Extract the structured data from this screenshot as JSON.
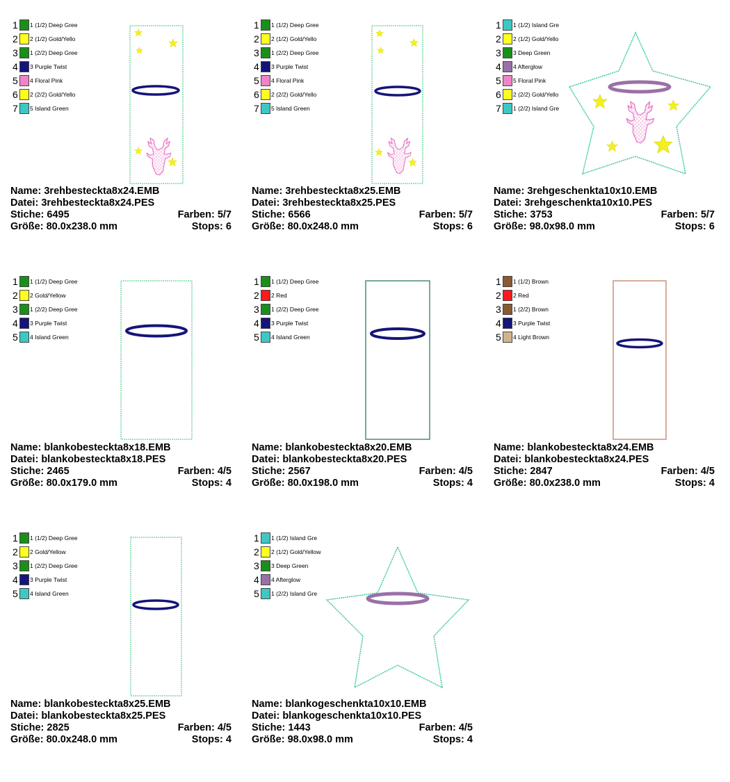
{
  "colors": {
    "deep_green": "#1a8f1a",
    "gold_yellow": "#ffff22",
    "purple_twist": "#14147a",
    "floral_pink": "#f084c8",
    "island_green": "#3ec8c4",
    "afterglow": "#9a70a8",
    "red": "#ff1a1a",
    "brown": "#8a5a32",
    "light_brown": "#d2b48c",
    "outline_green": "#7fd8a8",
    "outline_teal": "#4f8a7a",
    "outline_brown": "#c89078"
  },
  "labels": {
    "name": "Name:",
    "file": "Datei:",
    "stitches": "Stiche:",
    "colors": "Farben:",
    "size": "Größe:",
    "stops": "Stops:"
  },
  "designs": [
    {
      "shape": "rect-deer",
      "name": "3rehbesteckta8x24.EMB",
      "file": "3rehbesteckta8x24.PES",
      "stitches": "6495",
      "colors": "5/7",
      "size": "80.0x238.0 mm",
      "stops": "6",
      "legend": [
        {
          "num": "1",
          "label": "1 (1/2) Deep Gree",
          "color": "#1a8f1a"
        },
        {
          "num": "2",
          "label": "2 (1/2) Gold/Yello",
          "color": "#ffff22"
        },
        {
          "num": "3",
          "label": "1 (2/2) Deep Gree",
          "color": "#1a8f1a"
        },
        {
          "num": "4",
          "label": "3 Purple Twist",
          "color": "#14147a"
        },
        {
          "num": "5",
          "label": "4 Floral Pink",
          "color": "#f084c8"
        },
        {
          "num": "6",
          "label": "2 (2/2) Gold/Yello",
          "color": "#ffff22"
        },
        {
          "num": "7",
          "label": "5 Island Green",
          "color": "#3ec8c4"
        }
      ]
    },
    {
      "shape": "rect-deer",
      "name": "3rehbesteckta8x25.EMB",
      "file": "3rehbesteckta8x25.PES",
      "stitches": "6566",
      "colors": "5/7",
      "size": "80.0x248.0 mm",
      "stops": "6",
      "legend": [
        {
          "num": "1",
          "label": "1 (1/2) Deep Gree",
          "color": "#1a8f1a"
        },
        {
          "num": "2",
          "label": "2 (1/2) Gold/Yello",
          "color": "#ffff22"
        },
        {
          "num": "3",
          "label": "1 (2/2) Deep Gree",
          "color": "#1a8f1a"
        },
        {
          "num": "4",
          "label": "3 Purple Twist",
          "color": "#14147a"
        },
        {
          "num": "5",
          "label": "4 Floral Pink",
          "color": "#f084c8"
        },
        {
          "num": "6",
          "label": "2 (2/2) Gold/Yello",
          "color": "#ffff22"
        },
        {
          "num": "7",
          "label": "5 Island Green",
          "color": "#3ec8c4"
        }
      ]
    },
    {
      "shape": "star-deer",
      "name": "3rehgeschenkta10x10.EMB",
      "file": "3rehgeschenkta10x10.PES",
      "stitches": "3753",
      "colors": "5/7",
      "size": "98.0x98.0 mm",
      "stops": "6",
      "legend": [
        {
          "num": "1",
          "label": "1 (1/2) Island Gre",
          "color": "#3ec8c4"
        },
        {
          "num": "2",
          "label": "2 (1/2) Gold/Yello",
          "color": "#ffff22"
        },
        {
          "num": "3",
          "label": "3 Deep Green",
          "color": "#1a8f1a"
        },
        {
          "num": "4",
          "label": "4 Afterglow",
          "color": "#9a70a8"
        },
        {
          "num": "5",
          "label": "5 Floral Pink",
          "color": "#f084c8"
        },
        {
          "num": "6",
          "label": "2 (2/2) Gold/Yello",
          "color": "#ffff22"
        },
        {
          "num": "7",
          "label": "1 (2/2) Island Gre",
          "color": "#3ec8c4"
        }
      ]
    },
    {
      "shape": "rect-plain-18",
      "name": "blankobesteckta8x18.EMB",
      "file": "blankobesteckta8x18.PES",
      "stitches": "2465",
      "colors": "4/5",
      "size": "80.0x179.0 mm",
      "stops": "4",
      "legend": [
        {
          "num": "1",
          "label": "1 (1/2) Deep Gree",
          "color": "#1a8f1a"
        },
        {
          "num": "2",
          "label": "2 Gold/Yellow",
          "color": "#ffff22"
        },
        {
          "num": "3",
          "label": "1 (2/2) Deep Gree",
          "color": "#1a8f1a"
        },
        {
          "num": "4",
          "label": "3 Purple Twist",
          "color": "#14147a"
        },
        {
          "num": "5",
          "label": "4 Island Green",
          "color": "#3ec8c4"
        }
      ]
    },
    {
      "shape": "rect-plain-20",
      "name": "blankobesteckta8x20.EMB",
      "file": "blankobesteckta8x20.PES",
      "stitches": "2567",
      "colors": "4/5",
      "size": "80.0x198.0 mm",
      "stops": "4",
      "legend": [
        {
          "num": "1",
          "label": "1 (1/2) Deep Gree",
          "color": "#1a8f1a"
        },
        {
          "num": "2",
          "label": "2 Red",
          "color": "#ff1a1a"
        },
        {
          "num": "3",
          "label": "1 (2/2) Deep Gree",
          "color": "#1a8f1a"
        },
        {
          "num": "4",
          "label": "3 Purple Twist",
          "color": "#14147a"
        },
        {
          "num": "5",
          "label": "4 Island Green",
          "color": "#3ec8c4"
        }
      ]
    },
    {
      "shape": "rect-plain-24",
      "name": "blankobesteckta8x24.EMB",
      "file": "blankobesteckta8x24.PES",
      "stitches": "2847",
      "colors": "4/5",
      "size": "80.0x238.0 mm",
      "stops": "4",
      "legend": [
        {
          "num": "1",
          "label": "1 (1/2) Brown",
          "color": "#8a5a32"
        },
        {
          "num": "2",
          "label": "2 Red",
          "color": "#ff1a1a"
        },
        {
          "num": "3",
          "label": "1 (2/2) Brown",
          "color": "#8a5a32"
        },
        {
          "num": "4",
          "label": "3 Purple Twist",
          "color": "#14147a"
        },
        {
          "num": "5",
          "label": "4 Light Brown",
          "color": "#d2b48c"
        }
      ]
    },
    {
      "shape": "rect-plain-25",
      "name": "blankobesteckta8x25.EMB",
      "file": "blankobesteckta8x25.PES",
      "stitches": "2825",
      "colors": "4/5",
      "size": "80.0x248.0 mm",
      "stops": "4",
      "legend": [
        {
          "num": "1",
          "label": "1 (1/2) Deep Gree",
          "color": "#1a8f1a"
        },
        {
          "num": "2",
          "label": "2 Gold/Yellow",
          "color": "#ffff22"
        },
        {
          "num": "3",
          "label": "1 (2/2) Deep Gree",
          "color": "#1a8f1a"
        },
        {
          "num": "4",
          "label": "3 Purple Twist",
          "color": "#14147a"
        },
        {
          "num": "5",
          "label": "4 Island Green",
          "color": "#3ec8c4"
        }
      ]
    },
    {
      "shape": "star-plain",
      "name": "blankogeschenkta10x10.EMB",
      "file": "blankogeschenkta10x10.PES",
      "stitches": "1443",
      "colors": "4/5",
      "size": "98.0x98.0 mm",
      "stops": "4",
      "legend": [
        {
          "num": "1",
          "label": "1 (1/2) Island Gre",
          "color": "#3ec8c4"
        },
        {
          "num": "2",
          "label": "2 (1/2) Gold/Yellow",
          "color": "#ffff22"
        },
        {
          "num": "3",
          "label": "3 Deep Green",
          "color": "#1a8f1a"
        },
        {
          "num": "4",
          "label": "4 Afterglow",
          "color": "#9a70a8"
        },
        {
          "num": "5",
          "label": "1 (2/2) Island Gre",
          "color": "#3ec8c4"
        }
      ]
    }
  ]
}
